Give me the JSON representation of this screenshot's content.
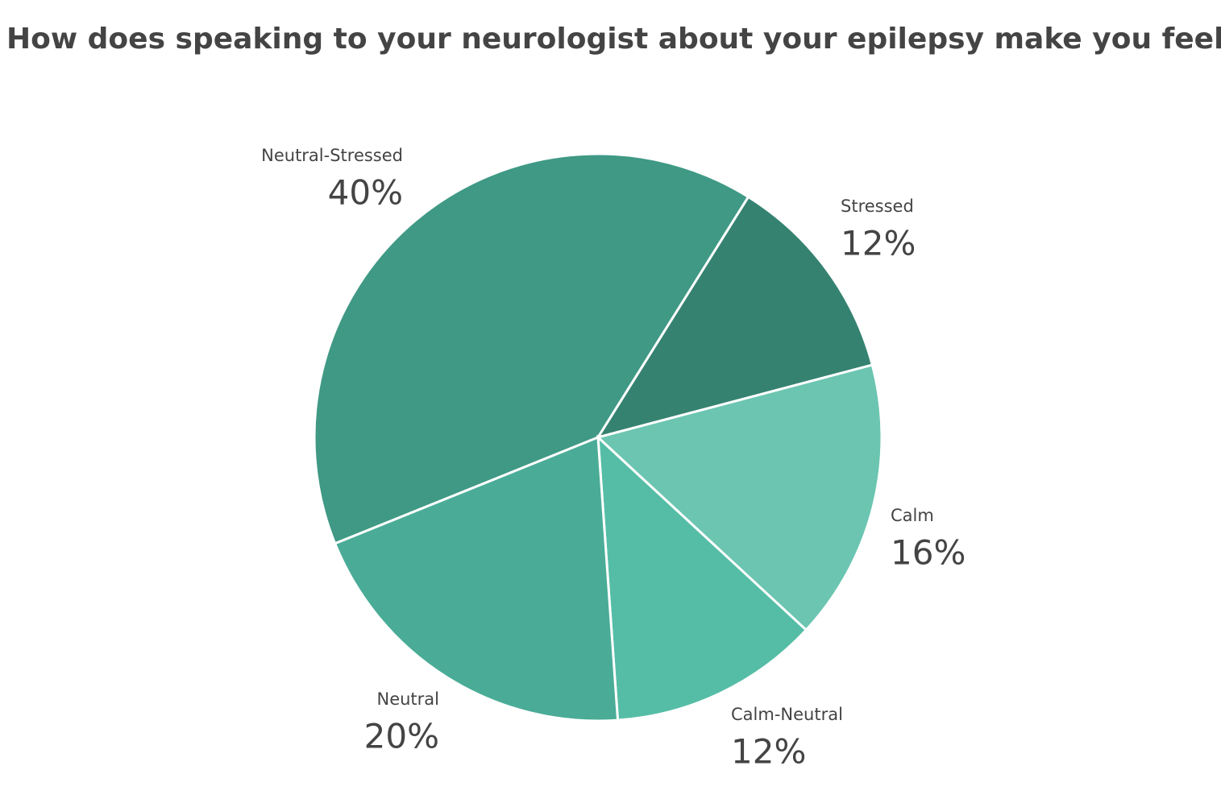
{
  "chart_data": {
    "type": "pie",
    "title": "How does speaking to your neurologist about your epilepsy make you feel?",
    "categories": [
      "Neutral-Stressed",
      "Stressed",
      "Calm",
      "Calm-Neutral",
      "Neutral"
    ],
    "values": [
      40,
      12,
      16,
      12,
      20
    ],
    "value_labels": [
      "40%",
      "12%",
      "16%",
      "12%",
      "20%"
    ],
    "colors": [
      "#3f9985",
      "#358271",
      "#6bc5b1",
      "#55bda6",
      "#4aac97"
    ]
  }
}
